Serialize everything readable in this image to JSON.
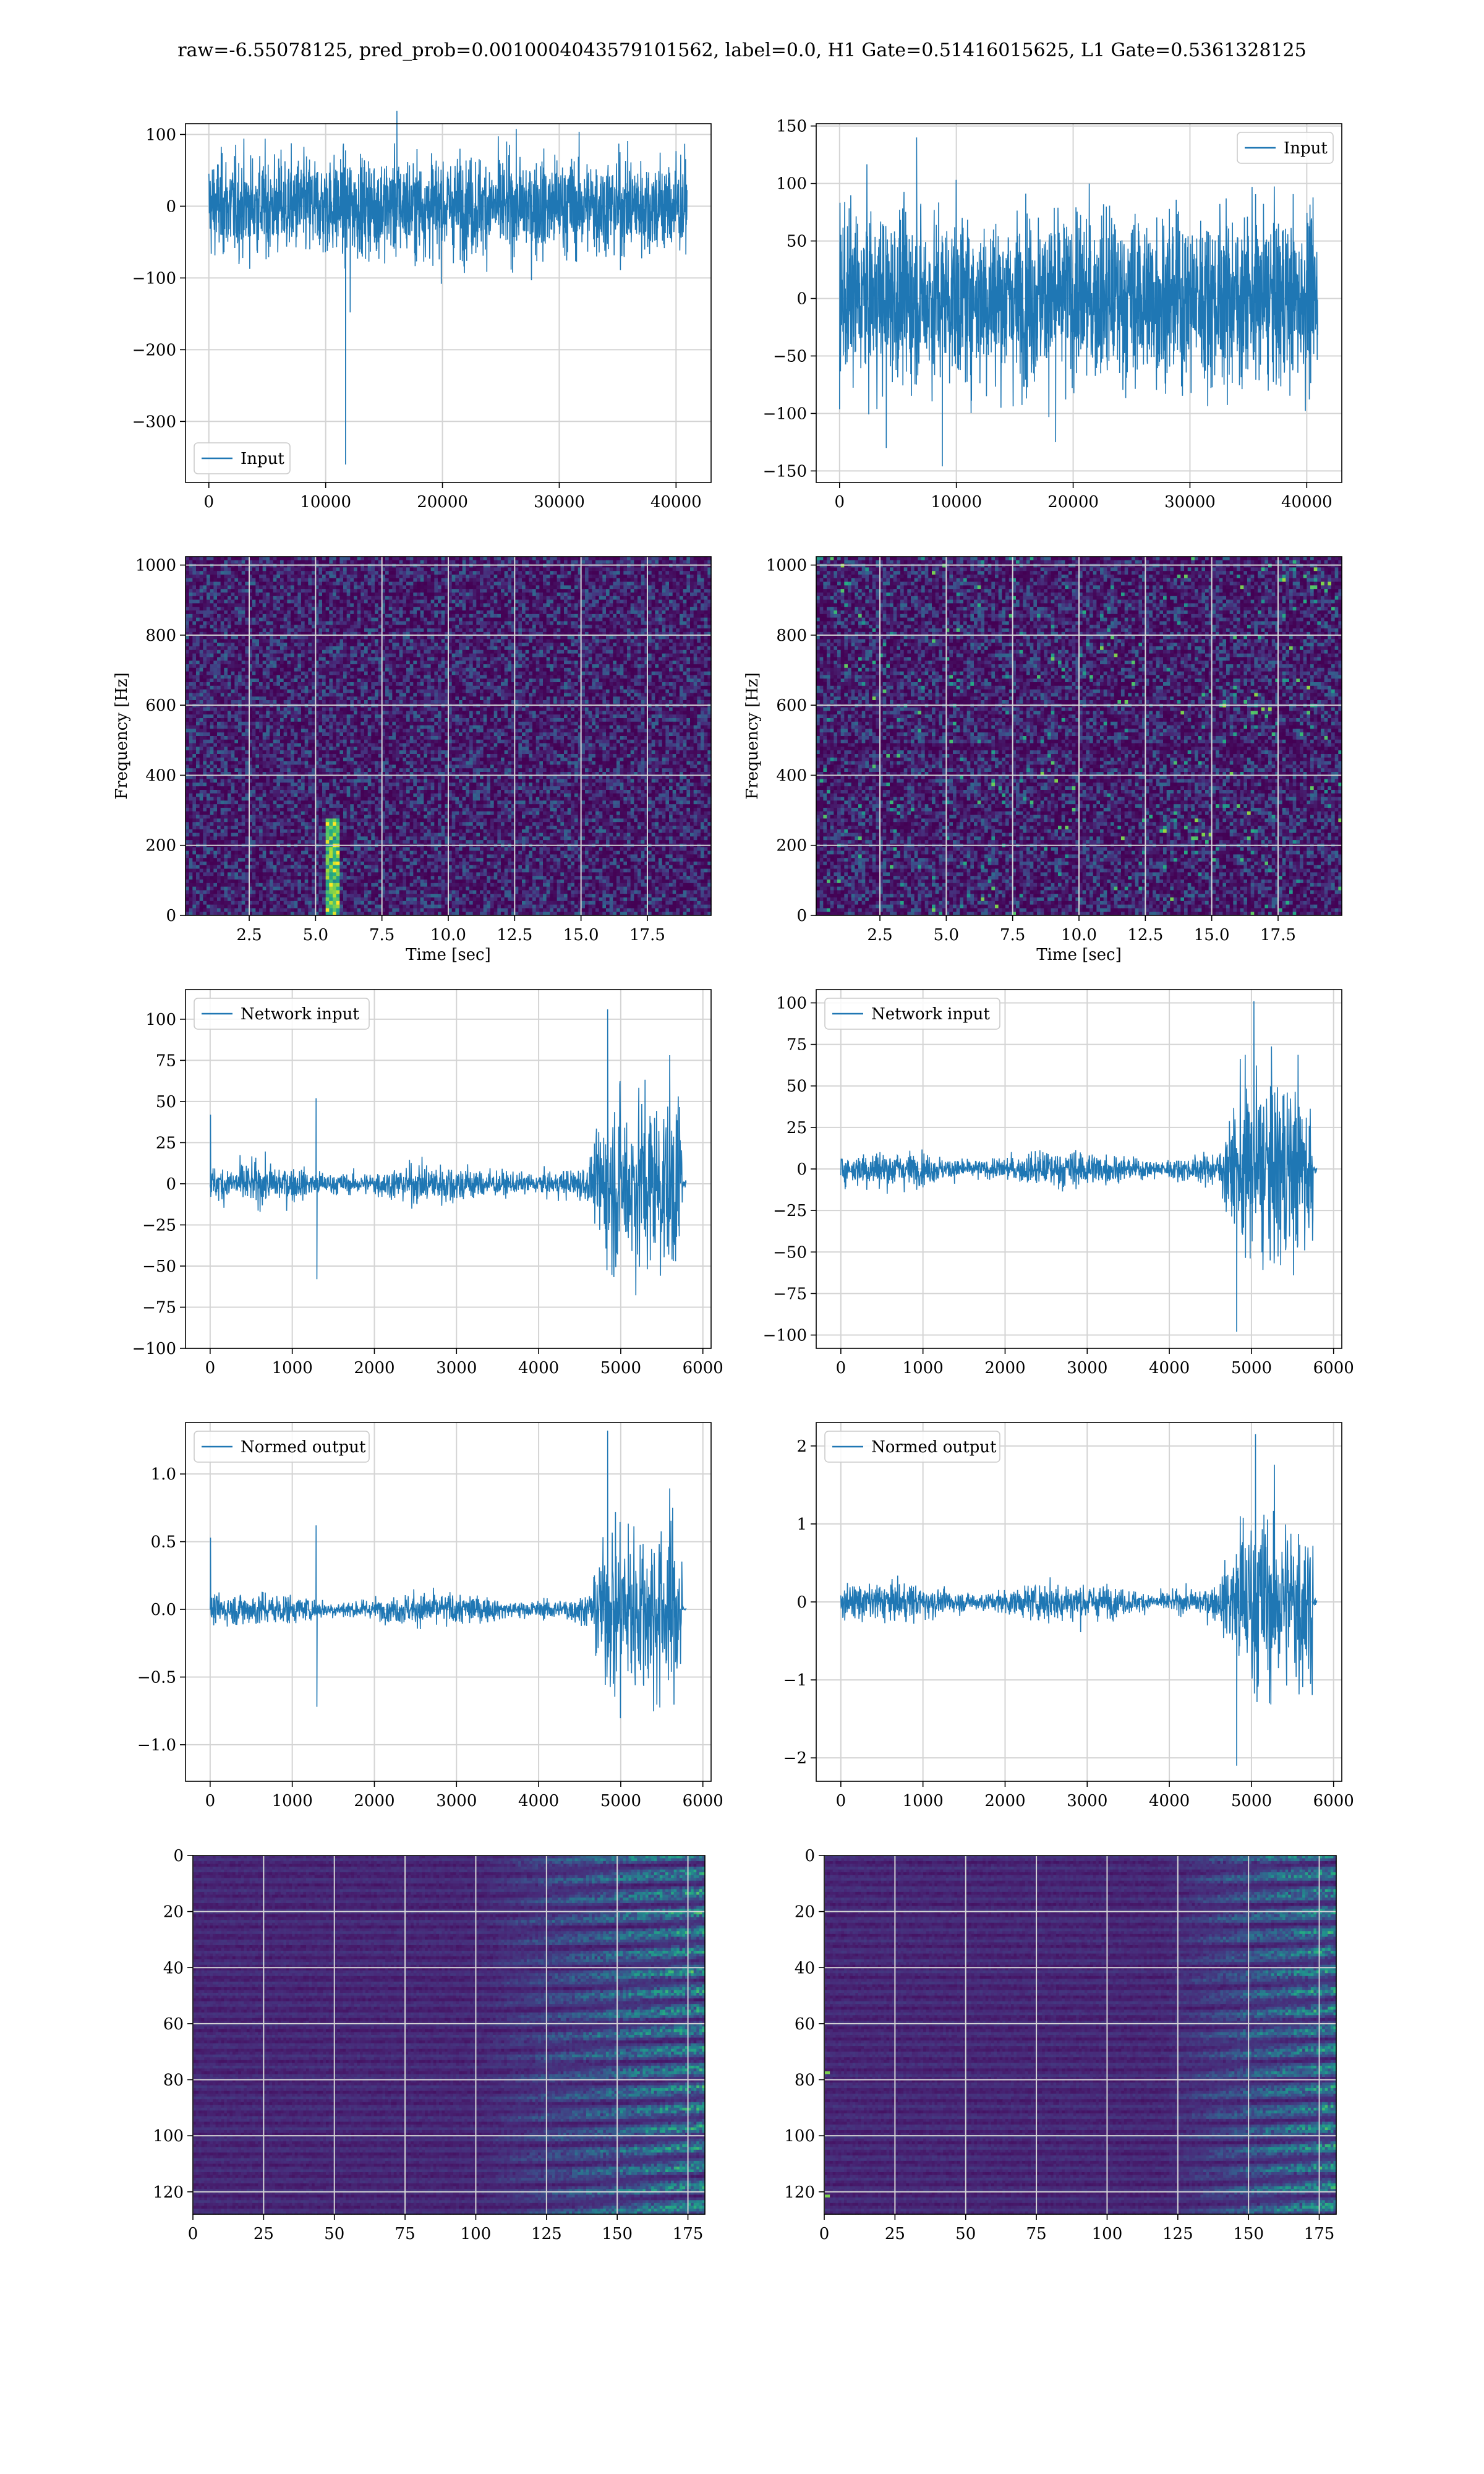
{
  "figure": {
    "title": "raw=-6.55078125, pred_prob=0.0010004043579101562, label=0.0, H1 Gate=0.51416015625, L1 Gate=0.5361328125"
  },
  "colors": {
    "line": "#1f77b4",
    "grid": "#d4d4d4",
    "viridis": [
      "#440154",
      "#472c7a",
      "#3b518b",
      "#2c718e",
      "#21908d",
      "#27ad81",
      "#5cc863",
      "#aadc32",
      "#fde725"
    ]
  },
  "chart_data": [
    {
      "id": "h1-input",
      "type": "line",
      "series": [
        {
          "name": "Input"
        }
      ],
      "legend": "lower-left",
      "xlim": [
        -2000,
        43000
      ],
      "ylim": [
        -385,
        115
      ],
      "xticks": [
        0,
        10000,
        20000,
        30000,
        40000
      ],
      "yticks": [
        -300,
        -200,
        -100,
        0,
        100
      ],
      "signal": {
        "n": 40960,
        "center": 0,
        "band": 62,
        "spikes": [
          [
            11700,
            -360
          ],
          [
            16100,
            133
          ],
          [
            12100,
            -148
          ]
        ]
      }
    },
    {
      "id": "l1-input",
      "type": "line",
      "series": [
        {
          "name": "Input"
        }
      ],
      "legend": "upper-right",
      "xlim": [
        -2000,
        43000
      ],
      "ylim": [
        -160,
        152
      ],
      "xticks": [
        0,
        10000,
        20000,
        30000,
        40000
      ],
      "yticks": [
        -150,
        -100,
        -50,
        0,
        50,
        100,
        150
      ],
      "signal": {
        "n": 40960,
        "center": 0,
        "band": 66,
        "spikes": [
          [
            6600,
            140
          ],
          [
            8800,
            -146
          ],
          [
            4000,
            -130
          ],
          [
            18500,
            -125
          ]
        ]
      }
    },
    {
      "id": "h1-spectrogram",
      "type": "heatmap",
      "xlabel": "Time [sec]",
      "ylabel": "Frequency [Hz]",
      "xlim": [
        0.1,
        19.9
      ],
      "ylim": [
        0,
        1024
      ],
      "xticks": [
        2.5,
        5.0,
        7.5,
        10.0,
        12.5,
        15.0,
        17.5
      ],
      "yticks": [
        0,
        200,
        400,
        600,
        800,
        1000
      ],
      "grid": true,
      "colormap": "viridis"
    },
    {
      "id": "l1-spectrogram",
      "type": "heatmap",
      "xlabel": "Time [sec]",
      "ylabel": "Frequency [Hz]",
      "xlim": [
        0.1,
        19.9
      ],
      "ylim": [
        0,
        1024
      ],
      "xticks": [
        2.5,
        5.0,
        7.5,
        10.0,
        12.5,
        15.0,
        17.5
      ],
      "yticks": [
        0,
        200,
        400,
        600,
        800,
        1000
      ],
      "grid": true,
      "colormap": "viridis"
    },
    {
      "id": "h1-network-input",
      "type": "line",
      "series": [
        {
          "name": "Network input"
        }
      ],
      "legend": "upper-left",
      "xlim": [
        -300,
        6100
      ],
      "ylim": [
        -100,
        118
      ],
      "xticks": [
        0,
        1000,
        2000,
        3000,
        4000,
        5000,
        6000
      ],
      "yticks": [
        -100,
        -75,
        -50,
        -25,
        0,
        25,
        50,
        75,
        100
      ],
      "signal": {
        "n": 5800,
        "center": 0,
        "base": 10,
        "peak": 50,
        "rise": 4600,
        "end": 5750,
        "tail": 5850,
        "spikes": [
          [
            5,
            42
          ],
          [
            1290,
            52
          ],
          [
            1300,
            -58
          ],
          [
            4840,
            106
          ]
        ]
      }
    },
    {
      "id": "l1-network-input",
      "type": "line",
      "series": [
        {
          "name": "Network input"
        }
      ],
      "legend": "upper-left",
      "xlim": [
        -300,
        6100
      ],
      "ylim": [
        -108,
        108
      ],
      "xticks": [
        0,
        1000,
        2000,
        3000,
        4000,
        5000,
        6000
      ],
      "yticks": [
        -100,
        -75,
        -50,
        -25,
        0,
        25,
        50,
        75,
        100
      ],
      "signal": {
        "n": 5800,
        "center": 0,
        "base": 9,
        "peak": 50,
        "rise": 4600,
        "end": 5750,
        "tail": 5850,
        "spikes": [
          [
            5030,
            101
          ],
          [
            4820,
            -98
          ]
        ]
      }
    },
    {
      "id": "h1-normed-output",
      "type": "line",
      "series": [
        {
          "name": "Normed output"
        }
      ],
      "legend": "upper-left",
      "xlim": [
        -300,
        6100
      ],
      "ylim": [
        -1.27,
        1.38
      ],
      "xticks": [
        0,
        1000,
        2000,
        3000,
        4000,
        5000,
        6000
      ],
      "yticks": [
        -1.0,
        -0.5,
        0.0,
        0.5,
        1.0
      ],
      "signal": {
        "n": 5800,
        "center": 0,
        "base": 0.1,
        "peak": 0.6,
        "rise": 4600,
        "end": 5750,
        "tail": 5850,
        "spikes": [
          [
            5,
            0.53
          ],
          [
            1290,
            0.62
          ],
          [
            1300,
            -0.72
          ],
          [
            4840,
            1.32
          ]
        ]
      }
    },
    {
      "id": "l1-normed-output",
      "type": "line",
      "series": [
        {
          "name": "Normed output"
        }
      ],
      "legend": "upper-left",
      "xlim": [
        -300,
        6100
      ],
      "ylim": [
        -2.3,
        2.3
      ],
      "xticks": [
        0,
        1000,
        2000,
        3000,
        4000,
        5000,
        6000
      ],
      "yticks": [
        -2,
        -1,
        0,
        1,
        2
      ],
      "signal": {
        "n": 5800,
        "center": 0,
        "base": 0.2,
        "peak": 1.05,
        "rise": 4600,
        "end": 5750,
        "tail": 5850,
        "spikes": [
          [
            5050,
            2.15
          ],
          [
            4820,
            -2.1
          ]
        ]
      }
    },
    {
      "id": "h1-feature-map",
      "type": "heatmap",
      "xlim": [
        0,
        181
      ],
      "ylim": [
        128,
        0
      ],
      "xticks": [
        0,
        25,
        50,
        75,
        100,
        125,
        150,
        175
      ],
      "yticks": [
        0,
        20,
        40,
        60,
        80,
        100,
        120
      ],
      "grid": true,
      "colormap": "viridis"
    },
    {
      "id": "l1-feature-map",
      "type": "heatmap",
      "xlim": [
        0,
        181
      ],
      "ylim": [
        128,
        0
      ],
      "xticks": [
        0,
        25,
        50,
        75,
        100,
        125,
        150,
        175
      ],
      "yticks": [
        0,
        20,
        40,
        60,
        80,
        100,
        120
      ],
      "grid": true,
      "colormap": "viridis"
    }
  ]
}
